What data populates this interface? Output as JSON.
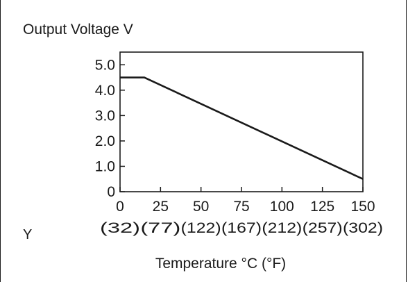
{
  "chart_data": {
    "type": "line",
    "title": "Output Voltage V",
    "xlabel": "Temperature °C (°F)",
    "side_label": "Y",
    "xlim": [
      0,
      150
    ],
    "ylim": [
      0,
      5.5
    ],
    "x_ticks": [
      {
        "value": 0,
        "label": "0",
        "sub": "(32)"
      },
      {
        "value": 25,
        "label": "25",
        "sub": "(77)"
      },
      {
        "value": 50,
        "label": "50",
        "sub": "(122)"
      },
      {
        "value": 75,
        "label": "75",
        "sub": "(167)"
      },
      {
        "value": 100,
        "label": "100",
        "sub": "(212)"
      },
      {
        "value": 125,
        "label": "125",
        "sub": "(257)"
      },
      {
        "value": 150,
        "label": "150",
        "sub": "(302)"
      }
    ],
    "y_ticks": [
      {
        "value": 0,
        "label": "0"
      },
      {
        "value": 1,
        "label": "1.0"
      },
      {
        "value": 2,
        "label": "2.0"
      },
      {
        "value": 3,
        "label": "3.0"
      },
      {
        "value": 4,
        "label": "4.0"
      },
      {
        "value": 5,
        "label": "5.0"
      }
    ],
    "grid": false,
    "series": [
      {
        "x": [
          0,
          15,
          150
        ],
        "y": [
          4.5,
          4.5,
          0.5
        ]
      }
    ]
  }
}
